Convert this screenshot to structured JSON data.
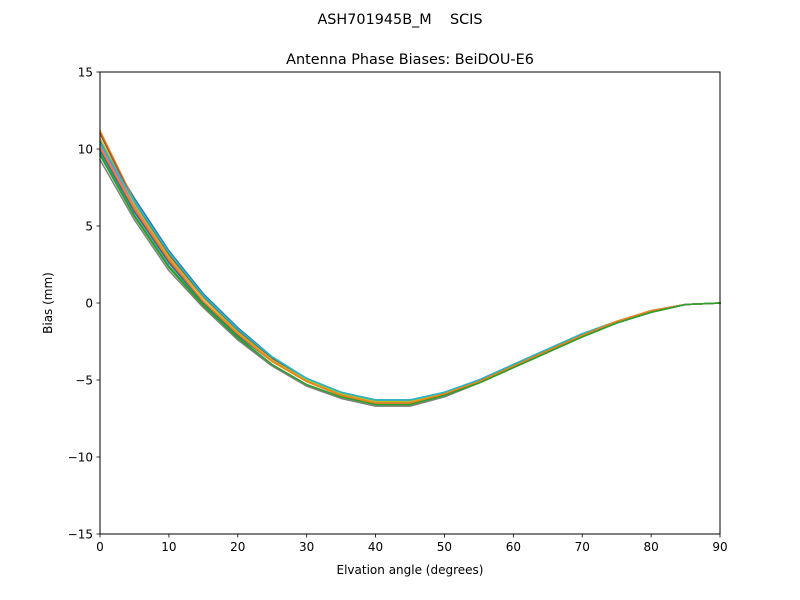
{
  "suptitle": "ASH701945B_M    SCIS",
  "chart_data": {
    "type": "line",
    "title": "Antenna Phase Biases: BeiDOU-E6",
    "xlabel": "Elvation angle (degrees)",
    "ylabel": "Bias (mm)",
    "xlim": [
      0,
      90
    ],
    "ylim": [
      -15,
      15
    ],
    "xticks": [
      0,
      10,
      20,
      30,
      40,
      50,
      60,
      70,
      80,
      90
    ],
    "yticks": [
      -15,
      -10,
      -5,
      0,
      5,
      10,
      15
    ],
    "xtick_labels": [
      "0",
      "10",
      "20",
      "30",
      "40",
      "50",
      "60",
      "70",
      "80",
      "90"
    ],
    "ytick_labels": [
      "−15",
      "−10",
      "−5",
      "0",
      "5",
      "10",
      "15"
    ],
    "grid": false,
    "x": [
      0,
      5,
      10,
      15,
      20,
      25,
      30,
      35,
      40,
      45,
      50,
      55,
      60,
      65,
      70,
      75,
      80,
      85,
      90
    ],
    "series": [
      {
        "color": "#1f77b4",
        "values": [
          10.5,
          6.8,
          3.4,
          0.6,
          -1.6,
          -3.5,
          -4.9,
          -5.8,
          -6.3,
          -6.3,
          -5.8,
          -5.0,
          -4.0,
          -3.0,
          -2.0,
          -1.2,
          -0.5,
          -0.1,
          0.0
        ]
      },
      {
        "color": "#ff7f0e",
        "values": [
          11.2,
          6.6,
          3.2,
          0.5,
          -1.7,
          -3.6,
          -4.9,
          -5.8,
          -6.3,
          -6.4,
          -5.9,
          -5.0,
          -4.0,
          -3.0,
          -2.0,
          -1.2,
          -0.5,
          -0.1,
          0.0
        ]
      },
      {
        "color": "#2ca02c",
        "values": [
          9.6,
          5.6,
          2.3,
          -0.2,
          -2.3,
          -4.0,
          -5.3,
          -6.1,
          -6.6,
          -6.6,
          -6.0,
          -5.2,
          -4.2,
          -3.2,
          -2.2,
          -1.3,
          -0.6,
          -0.1,
          0.0
        ]
      },
      {
        "color": "#d62728",
        "values": [
          10.0,
          6.0,
          2.7,
          0.1,
          -2.0,
          -3.7,
          -5.0,
          -5.9,
          -6.4,
          -6.4,
          -5.9,
          -5.1,
          -4.1,
          -3.1,
          -2.1,
          -1.2,
          -0.5,
          -0.1,
          0.0
        ]
      },
      {
        "color": "#9467bd",
        "values": [
          10.3,
          6.3,
          3.0,
          0.3,
          -1.8,
          -3.6,
          -4.9,
          -5.8,
          -6.3,
          -6.3,
          -5.8,
          -5.0,
          -4.0,
          -3.0,
          -2.0,
          -1.2,
          -0.5,
          -0.1,
          0.0
        ]
      },
      {
        "color": "#8c564b",
        "values": [
          11.0,
          6.5,
          3.1,
          0.4,
          -1.8,
          -3.6,
          -4.9,
          -5.8,
          -6.3,
          -6.4,
          -5.9,
          -5.0,
          -4.0,
          -3.0,
          -2.0,
          -1.2,
          -0.5,
          -0.1,
          0.0
        ]
      },
      {
        "color": "#e377c2",
        "values": [
          10.2,
          6.2,
          2.9,
          0.3,
          -1.9,
          -3.7,
          -5.0,
          -5.9,
          -6.4,
          -6.4,
          -5.9,
          -5.1,
          -4.1,
          -3.1,
          -2.1,
          -1.2,
          -0.5,
          -0.1,
          0.0
        ]
      },
      {
        "color": "#7f7f7f",
        "values": [
          9.3,
          5.4,
          2.1,
          -0.3,
          -2.4,
          -4.1,
          -5.4,
          -6.2,
          -6.7,
          -6.7,
          -6.1,
          -5.2,
          -4.2,
          -3.2,
          -2.2,
          -1.3,
          -0.6,
          -0.1,
          0.0
        ]
      },
      {
        "color": "#bcbd22",
        "values": [
          10.7,
          6.4,
          3.0,
          0.3,
          -1.9,
          -3.7,
          -5.0,
          -5.9,
          -6.4,
          -6.4,
          -5.9,
          -5.1,
          -4.1,
          -3.1,
          -2.1,
          -1.2,
          -0.5,
          -0.1,
          0.0
        ]
      },
      {
        "color": "#17becf",
        "values": [
          10.4,
          6.6,
          3.3,
          0.5,
          -1.7,
          -3.5,
          -4.9,
          -5.8,
          -6.3,
          -6.3,
          -5.8,
          -5.0,
          -4.0,
          -3.0,
          -2.0,
          -1.2,
          -0.5,
          -0.1,
          0.0
        ]
      },
      {
        "color": "#1f77b4",
        "values": [
          9.9,
          5.9,
          2.6,
          0.0,
          -2.1,
          -3.8,
          -5.1,
          -6.0,
          -6.5,
          -6.5,
          -6.0,
          -5.1,
          -4.1,
          -3.1,
          -2.1,
          -1.3,
          -0.6,
          -0.1,
          0.0
        ]
      },
      {
        "color": "#ff7f0e",
        "values": [
          10.1,
          6.1,
          2.8,
          0.1,
          -2.0,
          -3.8,
          -5.1,
          -6.0,
          -6.5,
          -6.5,
          -5.9,
          -5.1,
          -4.1,
          -3.1,
          -2.1,
          -1.2,
          -0.5,
          -0.1,
          0.0
        ]
      },
      {
        "color": "#2ca02c",
        "values": [
          9.7,
          5.7,
          2.4,
          -0.1,
          -2.2,
          -4.0,
          -5.3,
          -6.1,
          -6.6,
          -6.6,
          -6.0,
          -5.2,
          -4.2,
          -3.2,
          -2.2,
          -1.3,
          -0.6,
          -0.1,
          0.0
        ]
      }
    ]
  }
}
